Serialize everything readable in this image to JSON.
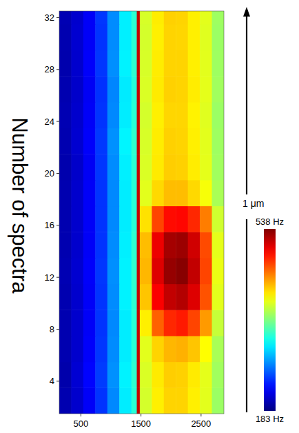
{
  "chart_data": {
    "type": "heatmap",
    "y_label": "Number of spectra",
    "annotation": "1 μm",
    "xlim": [
      140,
      2880
    ],
    "ylim": [
      1.5,
      32.5
    ],
    "xticks": [
      500,
      1500,
      2500
    ],
    "yticks": [
      4,
      8,
      12,
      16,
      20,
      24,
      28,
      32
    ],
    "x_edges": [
      140,
      340,
      540,
      740,
      940,
      1140,
      1340,
      1430,
      1480,
      1680,
      1880,
      2080,
      2280,
      2480,
      2680,
      2880
    ],
    "y_edges": [
      1.5,
      3.5,
      5.5,
      7.5,
      9.5,
      11.5,
      13.5,
      15.5,
      17.5,
      19.5,
      21.5,
      23.5,
      25.5,
      27.5,
      29.5,
      31.5,
      32.5
    ],
    "cells": [
      [
        200,
        210,
        225,
        245,
        275,
        310,
        330,
        515,
        390,
        410,
        420,
        420,
        410,
        395,
        370
      ],
      [
        198,
        212,
        228,
        248,
        278,
        312,
        332,
        515,
        392,
        412,
        422,
        421,
        412,
        396,
        372
      ],
      [
        200,
        210,
        226,
        246,
        276,
        310,
        330,
        515,
        395,
        420,
        430,
        432,
        425,
        405,
        375
      ],
      [
        200,
        210,
        225,
        245,
        275,
        310,
        330,
        515,
        410,
        460,
        480,
        485,
        470,
        440,
        385
      ],
      [
        200,
        210,
        225,
        245,
        276,
        312,
        332,
        515,
        425,
        495,
        515,
        520,
        505,
        465,
        395
      ],
      [
        201,
        211,
        226,
        246,
        277,
        312,
        333,
        515,
        430,
        505,
        530,
        535,
        515,
        470,
        398
      ],
      [
        200,
        210,
        225,
        245,
        276,
        311,
        332,
        515,
        428,
        500,
        525,
        528,
        510,
        468,
        396
      ],
      [
        200,
        210,
        225,
        245,
        275,
        310,
        330,
        515,
        415,
        470,
        490,
        492,
        480,
        450,
        388
      ],
      [
        200,
        210,
        225,
        245,
        275,
        310,
        330,
        515,
        395,
        418,
        428,
        428,
        418,
        402,
        375
      ],
      [
        199,
        209,
        224,
        246,
        276,
        311,
        331,
        515,
        392,
        412,
        422,
        421,
        411,
        396,
        372
      ],
      [
        200,
        211,
        226,
        247,
        278,
        313,
        333,
        515,
        391,
        411,
        421,
        420,
        410,
        395,
        371
      ],
      [
        201,
        210,
        225,
        245,
        275,
        310,
        330,
        515,
        390,
        410,
        419,
        419,
        409,
        394,
        370
      ],
      [
        200,
        209,
        224,
        244,
        274,
        309,
        329,
        515,
        392,
        412,
        421,
        420,
        411,
        396,
        372
      ],
      [
        199,
        210,
        226,
        246,
        277,
        312,
        332,
        515,
        391,
        411,
        420,
        420,
        410,
        395,
        371
      ],
      [
        200,
        211,
        225,
        245,
        276,
        311,
        331,
        515,
        390,
        410,
        420,
        419,
        410,
        394,
        370
      ],
      [
        201,
        210,
        225,
        246,
        276,
        311,
        331,
        515,
        391,
        411,
        421,
        420,
        410,
        395,
        371
      ]
    ],
    "colorbar": {
      "range": [
        183,
        538
      ],
      "ticks": [
        {
          "value": 183,
          "label": "183 Hz"
        },
        {
          "value": 538,
          "label": "538 Hz"
        }
      ]
    }
  }
}
